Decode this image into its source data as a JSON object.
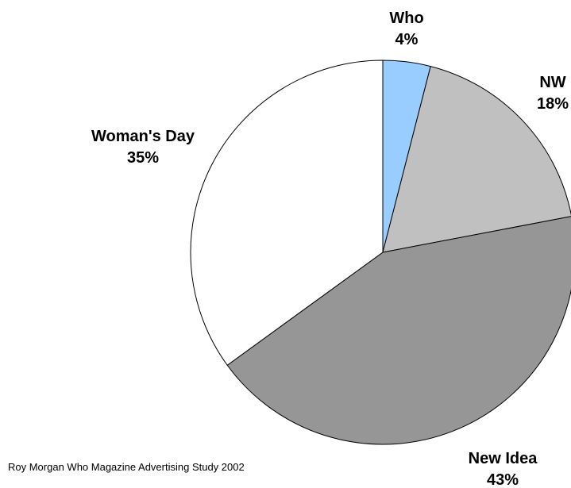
{
  "chart_data": {
    "type": "pie",
    "title": "",
    "start_angle_deg": 0,
    "direction": "clockwise",
    "legend": "none",
    "slices": [
      {
        "label": "Who",
        "value": 4,
        "value_label": "4%",
        "color": "#99ccff"
      },
      {
        "label": "NW",
        "value": 18,
        "value_label": "18%",
        "color": "#c0c0c0"
      },
      {
        "label": "New Idea",
        "value": 43,
        "value_label": "43%",
        "color": "#969696"
      },
      {
        "label": "Woman's Day",
        "value": 35,
        "value_label": "35%",
        "color": "#ffffff"
      }
    ]
  },
  "footer": {
    "source": "Roy Morgan Who Magazine Advertising Study 2002"
  }
}
